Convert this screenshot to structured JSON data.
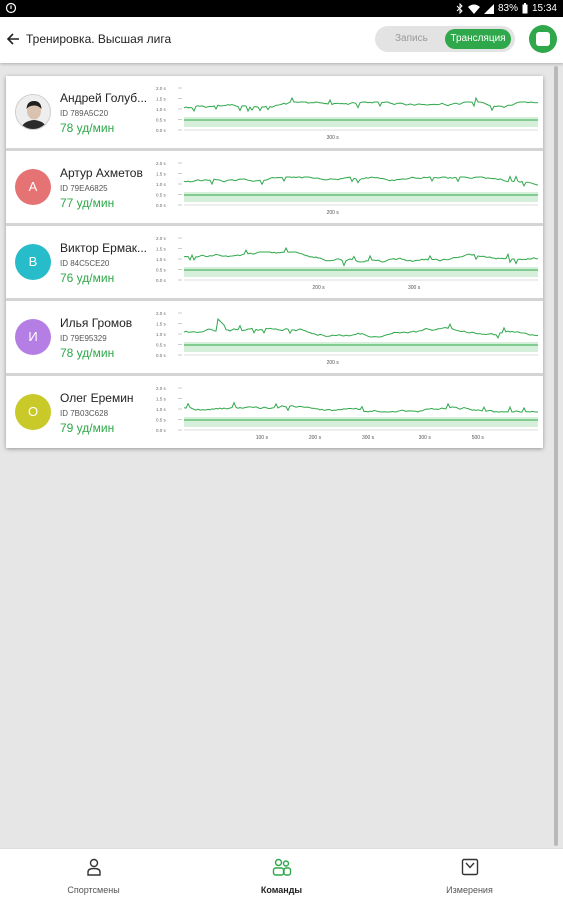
{
  "status_bar": {
    "battery": "83%",
    "time": "15:34"
  },
  "app_bar": {
    "title": "Тренировка. Высшая лига",
    "toggle": {
      "record_label": "Запись",
      "live_label": "Трансляция"
    }
  },
  "colors": {
    "accent": "#2ea84a",
    "trace": "#2ea84a",
    "band": "#d6efdb"
  },
  "chart_axis": {
    "ticks": [
      "2.0 s",
      "1.5 s",
      "1.0 s",
      "0.5 s",
      "0.0 s"
    ]
  },
  "athletes": [
    {
      "name": "Андрей Голуб...",
      "id": "ID 789A5C20",
      "hr": "78 уд/мин",
      "avatar": "",
      "avatar_color": "",
      "x_labels": [
        "300 s"
      ]
    },
    {
      "name": "Артур Ахметов",
      "id": "ID 79EA6825",
      "hr": "77 уд/мин",
      "avatar": "А",
      "avatar_color": "#e57373",
      "x_labels": [
        "200 s"
      ]
    },
    {
      "name": "Виктор Ермак...",
      "id": "ID 84C5CE20",
      "hr": "76 уд/мин",
      "avatar": "В",
      "avatar_color": "#26bcc9",
      "x_labels": [
        "200 s",
        "300 s"
      ]
    },
    {
      "name": "Илья Громов",
      "id": "ID 79E95329",
      "hr": "78 уд/мин",
      "avatar": "И",
      "avatar_color": "#b57ee5",
      "x_labels": [
        "200 s"
      ]
    },
    {
      "name": "Олег Еремин",
      "id": "ID 7B03C628",
      "hr": "79 уд/мин",
      "avatar": "О",
      "avatar_color": "#c9c92a",
      "x_labels": [
        "100 s",
        "200 s",
        "300 s",
        "300 s",
        "500 s"
      ]
    }
  ],
  "bottom_nav": [
    {
      "label": "Спортсмены",
      "icon": "person-icon",
      "active": false
    },
    {
      "label": "Команды",
      "icon": "team-icon",
      "active": true
    },
    {
      "label": "Измерения",
      "icon": "measurements-icon",
      "active": false
    }
  ]
}
